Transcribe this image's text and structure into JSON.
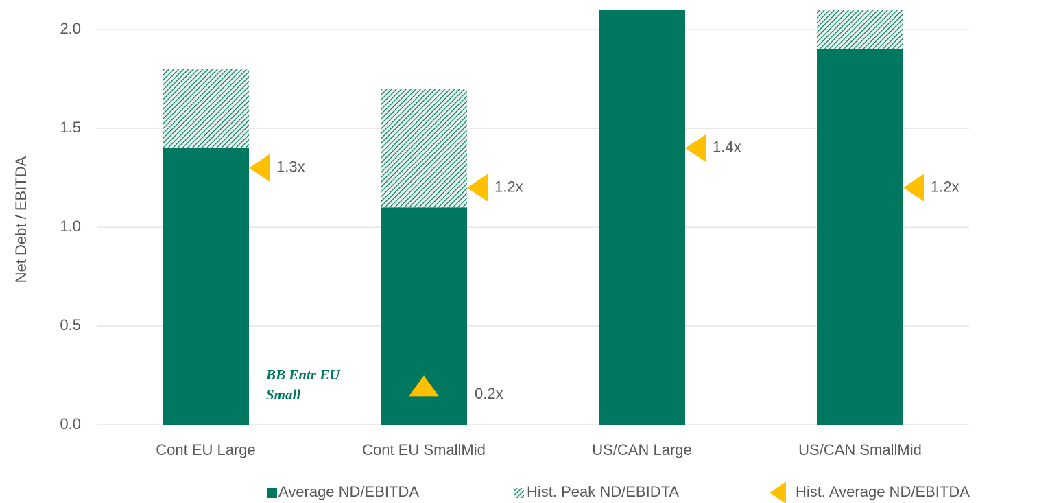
{
  "chart_data": {
    "type": "bar",
    "stacked": true,
    "y_label": "Net Debt / EBITDA",
    "categories": [
      "Cont EU Large",
      "Cont EU SmallMid",
      "US/CAN Large",
      "US/CAN SmallMid"
    ],
    "series": [
      {
        "name": "Average ND/EBITDA",
        "color": "#00775f",
        "values": [
          1.4,
          1.1,
          2.1,
          1.9
        ]
      },
      {
        "name": "Hist. Peak ND/EBIDTA",
        "color": "#00775f",
        "pattern": "hatch",
        "values": [
          0.4,
          0.6,
          0,
          0.2
        ]
      }
    ],
    "markers": {
      "name": "Hist. Average ND/EBITDA",
      "color": "#ffc000",
      "values": [
        1.3,
        1.2,
        1.4,
        1.2
      ],
      "value_labels": [
        "1.3x",
        "1.2x",
        "1.4x",
        "1.2x"
      ]
    },
    "annotation": {
      "text": "BB Entr EU Small",
      "value": 0.2,
      "value_label": "0.2x"
    },
    "ylim": [
      0,
      2.15
    ],
    "yticks": [
      {
        "value": 0,
        "label": "0.0"
      },
      0.5,
      {
        "value": 1,
        "label": "1.0"
      },
      1.5,
      {
        "value": 2,
        "label": "2.0"
      }
    ],
    "grid": true,
    "legend": "bottom"
  }
}
